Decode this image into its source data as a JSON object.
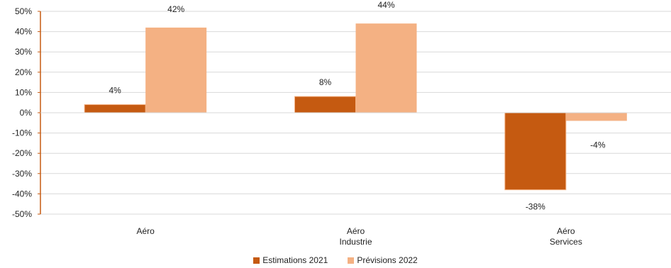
{
  "chart_data": {
    "type": "bar",
    "categories": [
      [
        "Aéro"
      ],
      [
        "Aéro",
        "Industrie"
      ],
      [
        "Aéro",
        "Services"
      ]
    ],
    "series": [
      {
        "name": "Estimations 2021",
        "values": [
          4,
          8,
          -38
        ],
        "labels": [
          "4%",
          "8%",
          "-38%"
        ],
        "color": "#c55a11"
      },
      {
        "name": "Prévisions 2022",
        "values": [
          42,
          44,
          -4
        ],
        "labels": [
          "42%",
          "44%",
          "-4%"
        ],
        "color": "#f4b183"
      }
    ],
    "ylim": [
      -50,
      50
    ],
    "yticks": [
      {
        "value": 50,
        "label": "50%"
      },
      {
        "value": 40,
        "label": "40%"
      },
      {
        "value": 30,
        "label": "30%"
      },
      {
        "value": 20,
        "label": "20%"
      },
      {
        "value": 10,
        "label": "10%"
      },
      {
        "value": 0,
        "label": "0%"
      },
      {
        "value": -10,
        "label": "-10%"
      },
      {
        "value": -20,
        "label": "-20%"
      },
      {
        "value": -30,
        "label": "-30%"
      },
      {
        "value": -40,
        "label": "-40%"
      },
      {
        "value": -50,
        "label": "-50%"
      }
    ],
    "grid": true,
    "legend": "bottom",
    "axis_color": "#c55a11",
    "grid_color": "#d9d9d9"
  }
}
